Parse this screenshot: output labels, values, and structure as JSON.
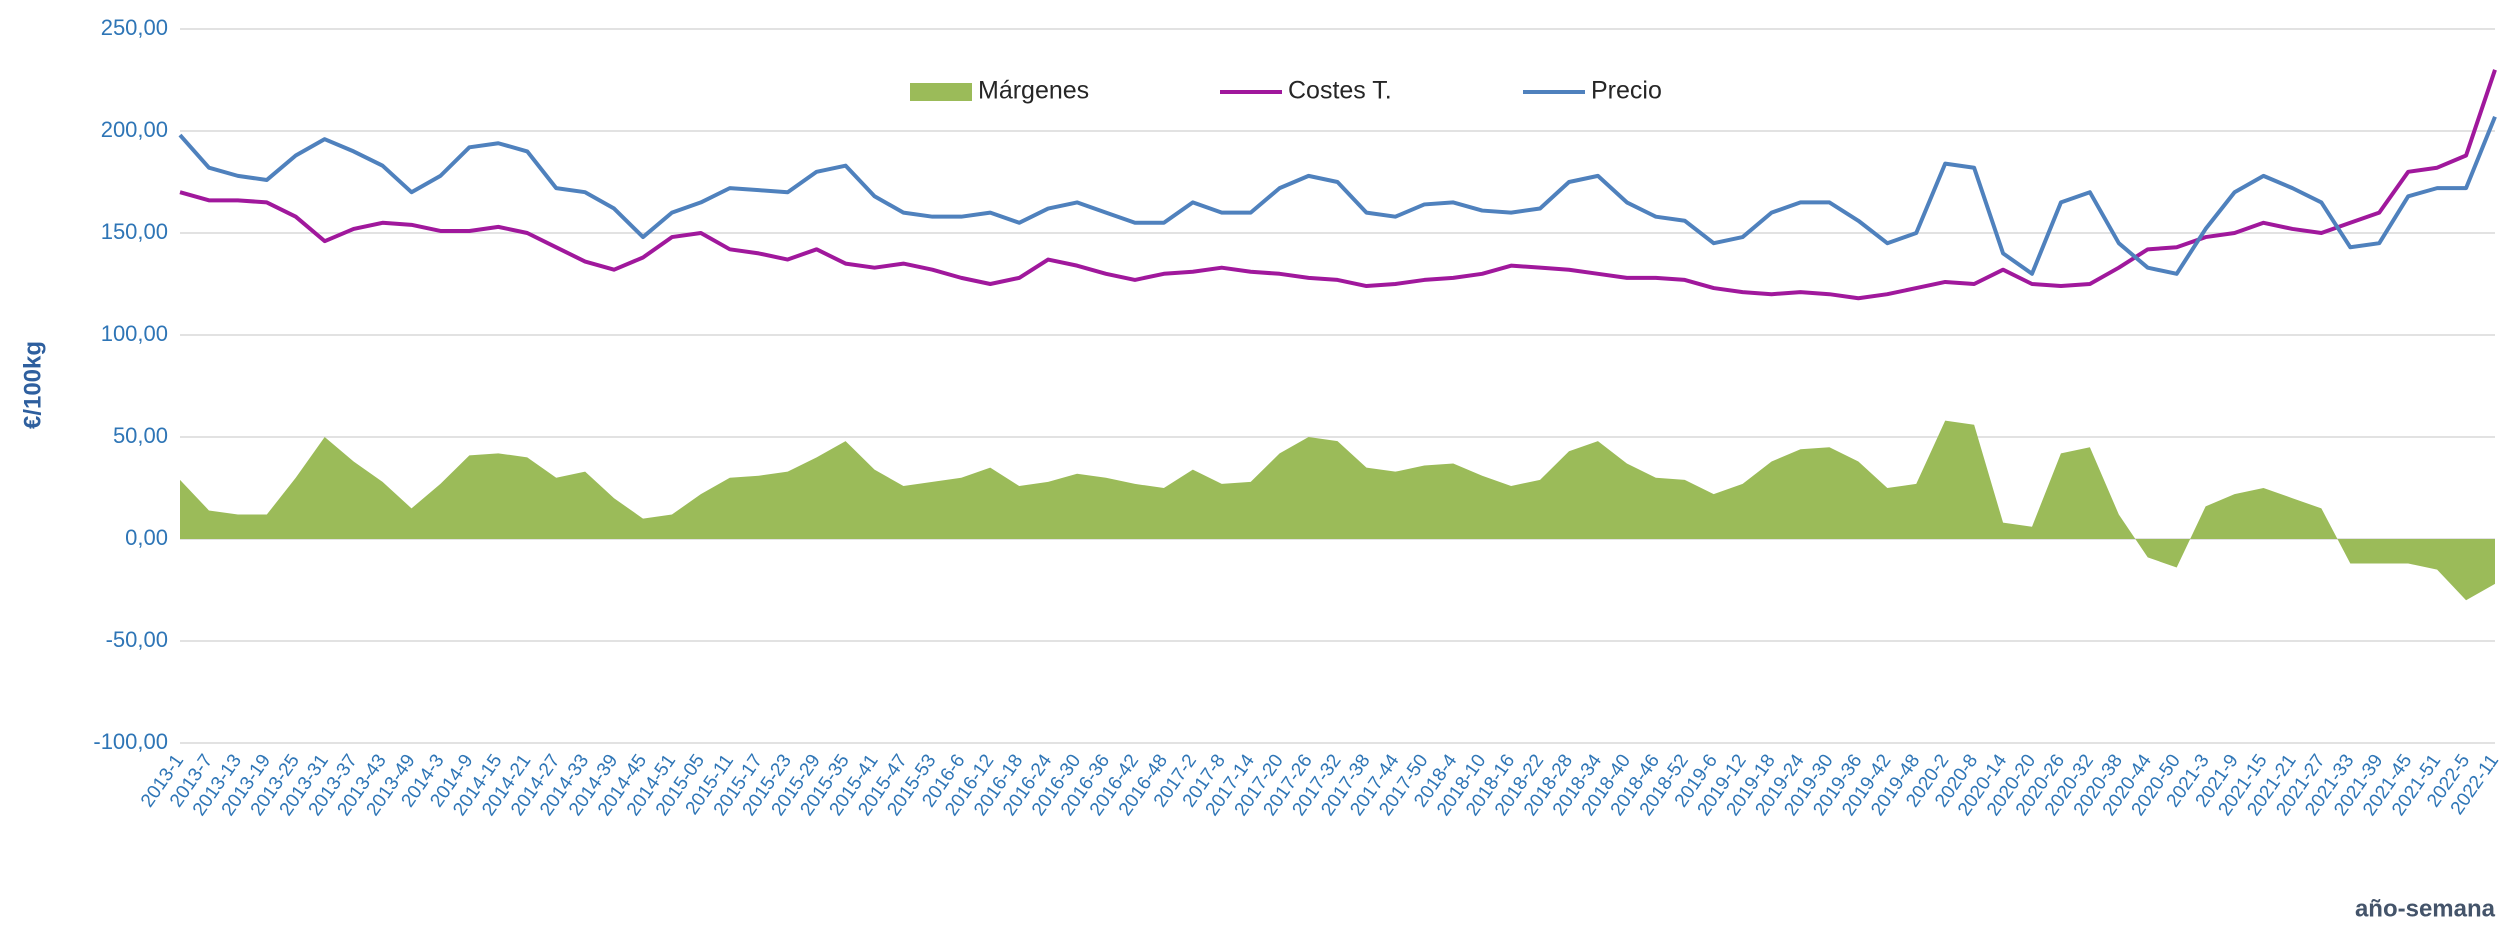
{
  "chart_data": {
    "type": "line",
    "y_label": "€/100kg",
    "x_label": "año-semana",
    "categories": [
      "2013-1",
      "2013-7",
      "2013-13",
      "2013-19",
      "2013-25",
      "2013-31",
      "2013-37",
      "2013-43",
      "2013-49",
      "2014-3",
      "2014-9",
      "2014-15",
      "2014-21",
      "2014-27",
      "2014-33",
      "2014-39",
      "2014-45",
      "2014-51",
      "2015-05",
      "2015-11",
      "2015-17",
      "2015-23",
      "2015-29",
      "2015-35",
      "2015-41",
      "2015-47",
      "2015-53",
      "2016-6",
      "2016-12",
      "2016-18",
      "2016-24",
      "2016-30",
      "2016-36",
      "2016-42",
      "2016-48",
      "2017-2",
      "2017-8",
      "2017-14",
      "2017-20",
      "2017-26",
      "2017-32",
      "2017-38",
      "2017-44",
      "2017-50",
      "2018-4",
      "2018-10",
      "2018-16",
      "2018-22",
      "2018-28",
      "2018-34",
      "2018-40",
      "2018-46",
      "2018-52",
      "2019-6",
      "2019-12",
      "2019-18",
      "2019-24",
      "2019-30",
      "2019-36",
      "2019-42",
      "2019-48",
      "2020-2",
      "2020-8",
      "2020-14",
      "2020-20",
      "2020-26",
      "2020-32",
      "2020-38",
      "2020-44",
      "2020-50",
      "2021-3",
      "2021-9",
      "2021-15",
      "2021-21",
      "2021-27",
      "2021-33",
      "2021-39",
      "2021-45",
      "2021-51",
      "2022-5",
      "2022-11"
    ],
    "series": [
      {
        "name": "Márgenes",
        "type": "area",
        "color": "#9bbb59",
        "values": [
          29,
          14,
          12,
          12,
          30,
          50,
          38,
          28,
          15,
          27,
          41,
          42,
          40,
          30,
          33,
          20,
          10,
          12,
          22,
          30,
          31,
          33,
          40,
          48,
          34,
          26,
          28,
          30,
          35,
          26,
          28,
          32,
          30,
          27,
          25,
          34,
          27,
          28,
          42,
          50,
          48,
          35,
          33,
          36,
          37,
          31,
          26,
          29,
          43,
          48,
          37,
          30,
          29,
          22,
          27,
          38,
          44,
          45,
          38,
          25,
          27,
          58,
          56,
          8,
          6,
          42,
          45,
          12,
          -9,
          -14,
          16,
          22,
          25,
          20,
          15,
          -12,
          -12,
          -12,
          -15,
          -30,
          -22
        ]
      },
      {
        "name": "Costes T.",
        "type": "line",
        "color": "#a0189c",
        "values": [
          170,
          166,
          166,
          165,
          158,
          146,
          152,
          155,
          154,
          151,
          151,
          153,
          150,
          143,
          136,
          132,
          138,
          148,
          150,
          142,
          140,
          137,
          142,
          135,
          133,
          135,
          132,
          128,
          125,
          128,
          137,
          134,
          130,
          127,
          130,
          131,
          133,
          131,
          130,
          128,
          127,
          124,
          125,
          127,
          128,
          130,
          134,
          133,
          132,
          130,
          128,
          128,
          127,
          123,
          121,
          120,
          121,
          120,
          118,
          120,
          123,
          126,
          125,
          132,
          125,
          124,
          125,
          133,
          142,
          143,
          148,
          150,
          155,
          152,
          150,
          155,
          160,
          180,
          182,
          188,
          230
        ]
      },
      {
        "name": "Precio",
        "type": "line",
        "color": "#4f81bd",
        "values": [
          198,
          182,
          178,
          176,
          188,
          196,
          190,
          183,
          170,
          178,
          192,
          194,
          190,
          172,
          170,
          162,
          148,
          160,
          165,
          172,
          171,
          170,
          180,
          183,
          168,
          160,
          158,
          158,
          160,
          155,
          162,
          165,
          160,
          155,
          155,
          165,
          160,
          160,
          172,
          178,
          175,
          160,
          158,
          164,
          165,
          161,
          160,
          162,
          175,
          178,
          165,
          158,
          156,
          145,
          148,
          160,
          165,
          165,
          156,
          145,
          150,
          184,
          182,
          140,
          130,
          165,
          170,
          145,
          133,
          130,
          152,
          170,
          178,
          172,
          165,
          143,
          145,
          168,
          172,
          172,
          207
        ]
      }
    ],
    "ylim": [
      -100,
      250
    ],
    "yticks": [
      {
        "value": -100,
        "label": "-100,00"
      },
      {
        "value": -50,
        "label": "-50,00"
      },
      {
        "value": 0,
        "label": "0,00"
      },
      {
        "value": 50,
        "label": "50,00"
      },
      {
        "value": 100,
        "label": "100,00"
      },
      {
        "value": 150,
        "label": "150,00"
      },
      {
        "value": 200,
        "label": "200,00"
      },
      {
        "value": 250,
        "label": "250,00"
      }
    ],
    "grid": true,
    "legend": "top"
  }
}
